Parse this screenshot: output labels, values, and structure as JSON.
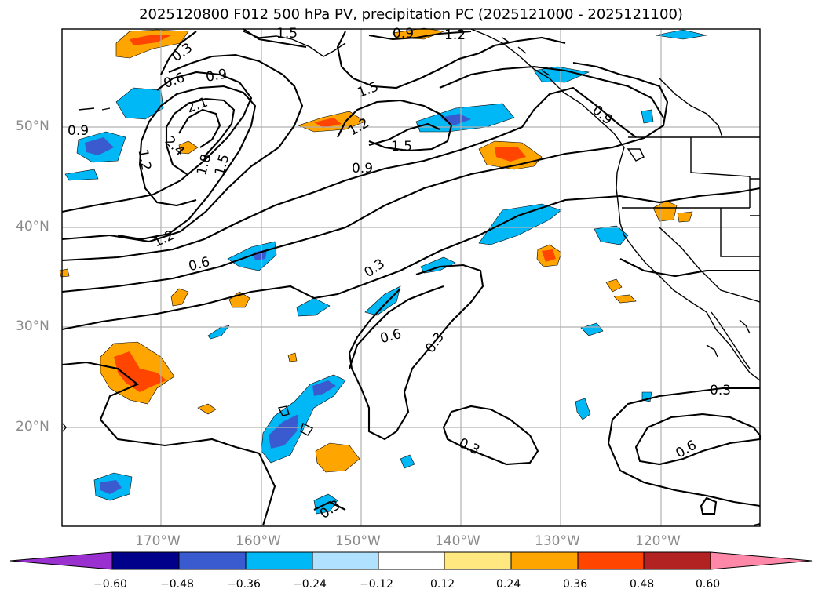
{
  "title": "2025120800 F012 500 hPa PV, precipitation PC (2025121000 - 2025121100)",
  "lat_labels": [
    "50°N",
    "40°N",
    "30°N",
    "20°N"
  ],
  "lon_labels": [
    "170°W",
    "160°W",
    "150°W",
    "140°W",
    "130°W",
    "120°W"
  ],
  "contour_labels": [
    "0.3",
    "0.6",
    "0.9",
    "1.2",
    "1.5",
    "1.8",
    "2.1",
    "2.4",
    "0.9",
    "1.2",
    "1.5",
    "1.5",
    "1.2",
    "0.9",
    "0.9",
    "0.6",
    "0.3",
    "0.6",
    "0.3",
    "0.3",
    "0.3",
    "0.6",
    "0.3",
    "1.2",
    "0.9",
    "1.5"
  ],
  "colorbar": {
    "tick_labels": [
      "−0.60",
      "−0.48",
      "−0.36",
      "−0.24",
      "−0.12",
      "0.12",
      "0.24",
      "0.36",
      "0.48",
      "0.60"
    ],
    "colors": [
      "#9a30d0",
      "#00008b",
      "#3a5bd0",
      "#00b8f5",
      "#b0e2ff",
      "#ffffff",
      "#ffe880",
      "#ffa500",
      "#ff4500",
      "#b22222",
      "#ff88a8"
    ]
  },
  "colors": {
    "pos_low": "#ffa500",
    "pos_mid": "#ff4500",
    "neg_low": "#00b8f5",
    "neg_mid": "#3a5bd0",
    "contour": "#000000",
    "grid": "#b0b0b0",
    "axis_label": "#8a8a8a"
  }
}
